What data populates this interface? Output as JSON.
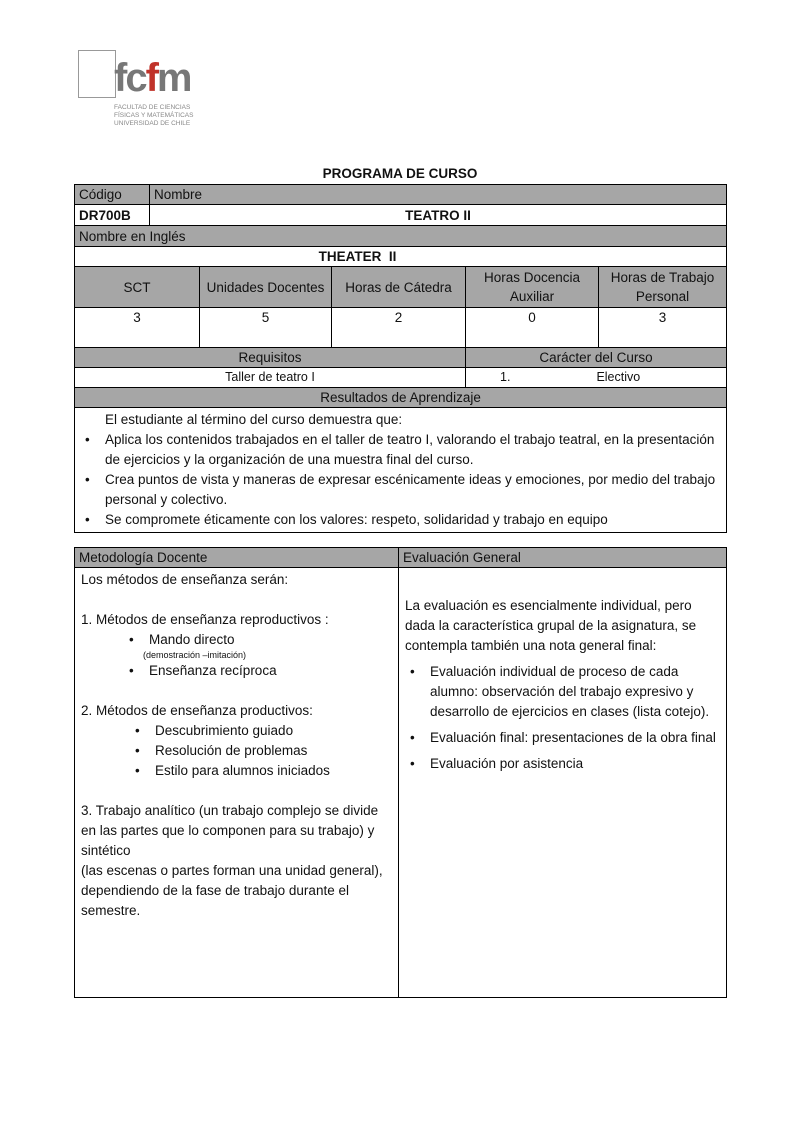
{
  "logo": {
    "text": "fcfm",
    "subtitle": "FACULTAD DE CIENCIAS FÍSICAS Y MATEMÁTICAS UNIVERSIDAD DE CHILE"
  },
  "title": "PROGRAMA DE CURSO",
  "course": {
    "code_label": "Código",
    "name_label": "Nombre",
    "code": "DR700B",
    "name": "TEATRO II",
    "english_label": "Nombre en Inglés",
    "english_name": "THEATER  II"
  },
  "hours": {
    "headers": [
      "SCT",
      "Unidades Docentes",
      "Horas de Cátedra",
      "Horas Docencia Auxiliar",
      "Horas de Trabajo Personal"
    ],
    "values": [
      "3",
      "5",
      "2",
      "0",
      "3"
    ]
  },
  "requisitos_label": "Requisitos",
  "caracter_label": "Carácter del Curso",
  "requisitos": "Taller de teatro I",
  "caracter_num": "1.",
  "caracter": "Electivo",
  "resultados": {
    "label": "Resultados de Aprendizaje",
    "intro": "El estudiante al término del curso demuestra que:",
    "items": [
      "Aplica los contenidos trabajados en el taller de teatro I, valorando el trabajo teatral, en la presentación de ejercicios  y la organización de una muestra final del curso.",
      "Crea puntos de vista y maneras de expresar escénicamente ideas  y emociones,  por  medio del trabajo personal y colectivo.",
      "Se compromete éticamente con los valores: respeto, solidaridad y trabajo en equipo"
    ]
  },
  "metodologia": {
    "label": "Metodología Docente",
    "intro": "Los métodos de enseñanza serán:",
    "s1": "1. Métodos de enseñanza reproductivos :",
    "s1_items": [
      "Mando directo",
      "Enseñanza recíproca"
    ],
    "s1_note": "(demostración  –imitación)",
    "s2": "2. Métodos de enseñanza productivos:",
    "s2_items": [
      "Descubrimiento guiado",
      "Resolución de problemas",
      "Estilo para alumnos iniciados"
    ],
    "s3": "3. Trabajo analítico (un trabajo complejo se divide en las partes que lo componen para su trabajo) y sintético",
    "s3b": "(las escenas o partes forman una unidad general), dependiendo de la fase de trabajo durante el semestre."
  },
  "evaluacion": {
    "label": "Evaluación General",
    "intro": "La evaluación es esencialmente individual, pero dada la característica grupal de la asignatura, se contempla también una nota general final:",
    "items": [
      "Evaluación individual de proceso de cada alumno: observación del trabajo expresivo y desarrollo de ejercicios en clases (lista cotejo).",
      "Evaluación final: presentaciones  de la obra final",
      "Evaluación por asistencia"
    ]
  }
}
